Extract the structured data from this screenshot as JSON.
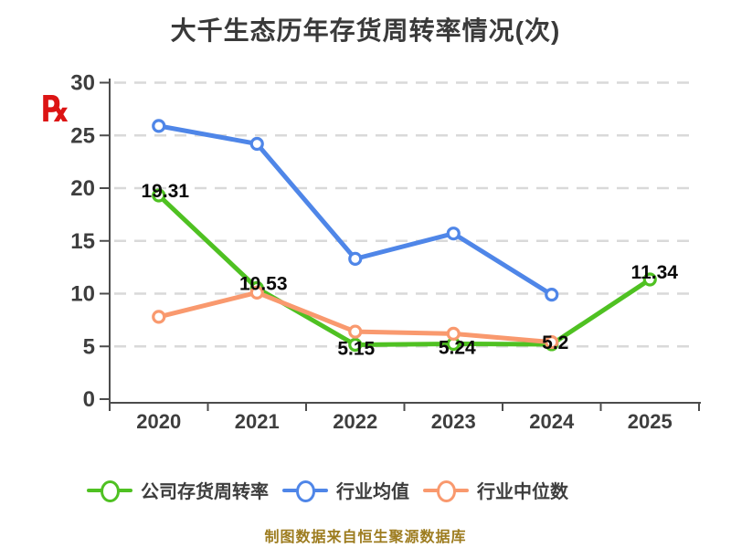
{
  "title": "大千生态历年存货周转率情况(次)",
  "watermark": {
    "glyph": "℞",
    "color": "#dc1414"
  },
  "caption": "制图数据来自恒生聚源数据库",
  "chart_data": {
    "type": "line",
    "title": "大千生态历年存货周转率情况(次)",
    "categories": [
      "2020",
      "2021",
      "2022",
      "2023",
      "2024",
      "2025"
    ],
    "ylim": [
      0,
      30
    ],
    "yticks": [
      0,
      5,
      10,
      15,
      20,
      25,
      30
    ],
    "grid": "horizontal-dashed",
    "legend_position": "bottom",
    "series": [
      {
        "name": "公司存货周转率",
        "color": "#4fc122",
        "values": [
          19.31,
          10.53,
          5.15,
          5.24,
          5.2,
          11.34
        ],
        "point_labels": [
          "19.31",
          "10.53",
          "5.15",
          "5.24",
          "5.2",
          "11.34"
        ]
      },
      {
        "name": "行业均值",
        "color": "#4f86e8",
        "values": [
          25.9,
          24.2,
          13.3,
          15.7,
          9.9,
          null
        ],
        "point_labels": []
      },
      {
        "name": "行业中位数",
        "color": "#f9996e",
        "values": [
          7.8,
          10.1,
          6.4,
          6.2,
          5.4,
          null
        ],
        "point_labels": []
      }
    ]
  },
  "colors": {
    "background": "#ffffff",
    "grid": "#d9d9d9",
    "axis": "#4c4c4c",
    "tick_text": "#3e3e3e",
    "point_label_text": "#0a0a0a",
    "title_text": "#3a3a3a",
    "legend_text": "#3d3d3d",
    "caption_text": "#9d7c1f"
  }
}
